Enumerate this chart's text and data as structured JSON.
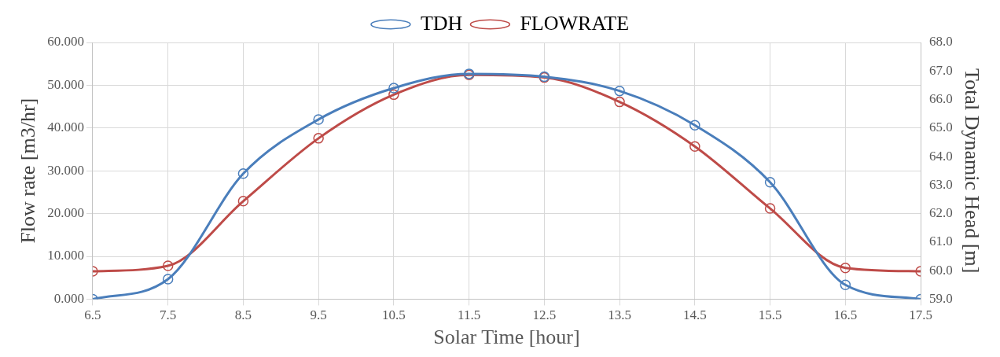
{
  "chart_data": {
    "type": "line",
    "xlabel": "Solar Time [hour]",
    "ylabel": "Flow rate [m3/hr]",
    "y2label": "Total Dynamic Head [m]",
    "x": [
      6.5,
      7.5,
      8.5,
      9.5,
      10.5,
      11.5,
      12.5,
      13.5,
      14.5,
      15.5,
      16.5,
      17.5
    ],
    "series": [
      {
        "name": "TDH",
        "color": "#4a7ebb",
        "axis": "y2",
        "values": [
          59.0,
          59.7,
          63.4,
          65.3,
          66.4,
          66.9,
          66.8,
          66.3,
          65.1,
          63.1,
          59.5,
          59.0
        ]
      },
      {
        "name": "FLOWRATE",
        "color": "#be4b48",
        "values": [
          6.5,
          7.8,
          22.9,
          37.6,
          47.8,
          52.4,
          51.8,
          46.1,
          35.7,
          21.2,
          7.3,
          6.5
        ]
      }
    ],
    "xlim": [
      6.5,
      17.5
    ],
    "xticks": [
      6.5,
      7.5,
      8.5,
      9.5,
      10.5,
      11.5,
      12.5,
      13.5,
      14.5,
      15.5,
      16.5,
      17.5
    ],
    "ylim": [
      0,
      60
    ],
    "yticks": [
      {
        "value": 0,
        "label": "0.000"
      },
      {
        "value": 10,
        "label": "10.000"
      },
      {
        "value": 20,
        "label": "20.000"
      },
      {
        "value": 30,
        "label": "30.000"
      },
      {
        "value": 40,
        "label": "40.000"
      },
      {
        "value": 50,
        "label": "50.000"
      },
      {
        "value": 60,
        "label": "60.000"
      }
    ],
    "y2lim": [
      59,
      68
    ],
    "y2ticks": [
      {
        "value": 59,
        "label": "59.0"
      },
      {
        "value": 60,
        "label": "60.0"
      },
      {
        "value": 61,
        "label": "61.0"
      },
      {
        "value": 62,
        "label": "62.0"
      },
      {
        "value": 63,
        "label": "63.0"
      },
      {
        "value": 64,
        "label": "64.0"
      },
      {
        "value": 65,
        "label": "65.0"
      },
      {
        "value": 66,
        "label": "66.0"
      },
      {
        "value": 67,
        "label": "67.0"
      },
      {
        "value": 68,
        "label": "68.0"
      }
    ],
    "grid": true,
    "legend": "top",
    "marker": "circle",
    "line_style": "solid"
  }
}
